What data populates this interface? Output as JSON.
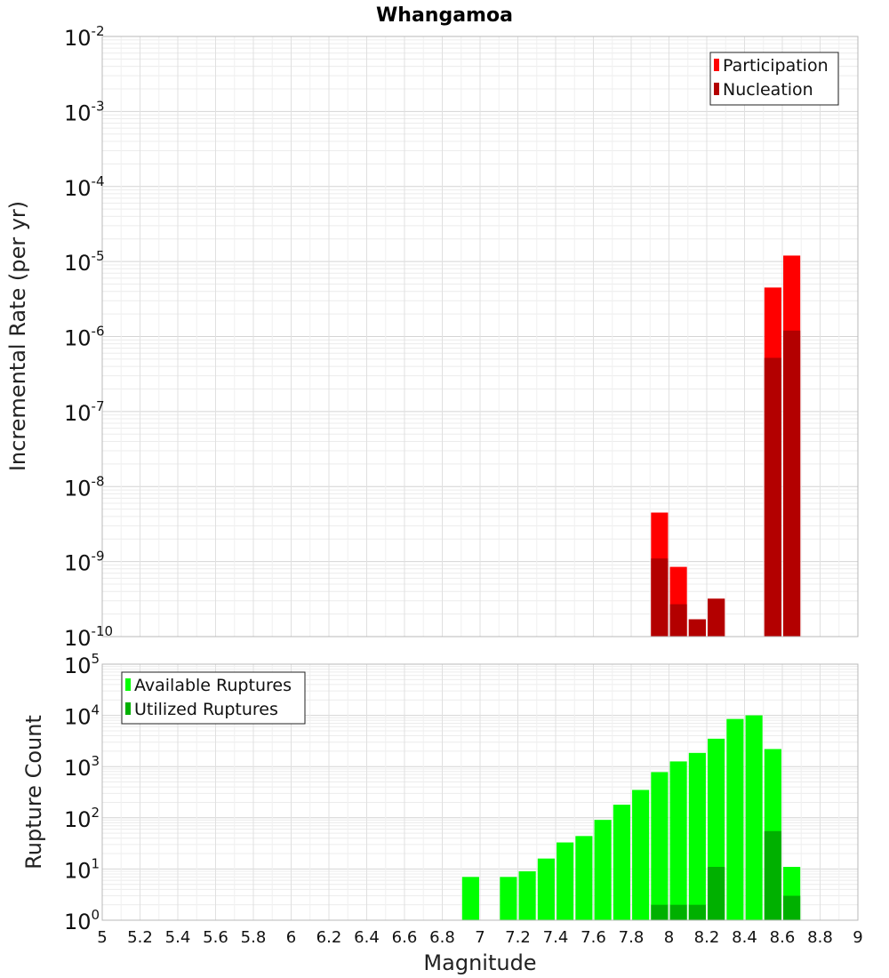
{
  "title": "Whangamoa",
  "xlabel": "Magnitude",
  "chart_data": [
    {
      "type": "bar",
      "ylabel": "Incremental Rate (per yr)",
      "yscale": "log",
      "ylim": [
        1e-10,
        0.01
      ],
      "xlim": [
        5,
        9
      ],
      "legend_position": "top-right",
      "x_ticks": [
        "5",
        "5.2",
        "5.4",
        "5.6",
        "5.8",
        "6",
        "6.2",
        "6.4",
        "6.6",
        "6.8",
        "7",
        "7.2",
        "7.4",
        "7.6",
        "7.8",
        "8",
        "8.2",
        "8.4",
        "8.6",
        "8.8",
        "9"
      ],
      "y_tick_exponents": [
        "-10",
        "-9",
        "-8",
        "-7",
        "-6",
        "-5",
        "-4",
        "-3",
        "-2"
      ],
      "grid": true,
      "series": [
        {
          "name": "Participation",
          "color": "#ff0000",
          "x": [
            7.95,
            8.05,
            8.15,
            8.25,
            8.55,
            8.65
          ],
          "values": [
            4.5e-09,
            8.5e-10,
            1.7e-10,
            3.2e-10,
            4.5e-06,
            1.2e-05
          ]
        },
        {
          "name": "Nucleation",
          "color": "#b30000",
          "x": [
            7.95,
            8.05,
            8.15,
            8.25,
            8.55,
            8.65
          ],
          "values": [
            1.1e-09,
            2.7e-10,
            1.7e-10,
            3.2e-10,
            5.2e-07,
            1.2e-06
          ]
        }
      ]
    },
    {
      "type": "bar",
      "ylabel": "Rupture Count",
      "yscale": "log",
      "ylim": [
        1,
        100000.0
      ],
      "xlim": [
        5,
        9
      ],
      "legend_position": "top-left",
      "x_ticks": [
        "5",
        "5.2",
        "5.4",
        "5.6",
        "5.8",
        "6",
        "6.2",
        "6.4",
        "6.6",
        "6.8",
        "7",
        "7.2",
        "7.4",
        "7.6",
        "7.8",
        "8",
        "8.2",
        "8.4",
        "8.6",
        "8.8",
        "9"
      ],
      "y_tick_exponents": [
        "0",
        "1",
        "2",
        "3",
        "4",
        "5"
      ],
      "grid": true,
      "series": [
        {
          "name": "Available Ruptures",
          "color": "#00ff00",
          "x": [
            6.95,
            7.15,
            7.25,
            7.35,
            7.45,
            7.55,
            7.65,
            7.75,
            7.85,
            7.95,
            8.05,
            8.15,
            8.25,
            8.35,
            8.45,
            8.55,
            8.65
          ],
          "values": [
            7,
            7,
            9,
            16,
            33,
            44,
            91,
            180,
            350,
            780,
            1260,
            1850,
            3500,
            8500,
            10000,
            2200,
            11
          ]
        },
        {
          "name": "Utilized Ruptures",
          "color": "#00b000",
          "x": [
            7.95,
            8.05,
            8.15,
            8.25,
            8.55,
            8.65
          ],
          "values": [
            2,
            2,
            2,
            11,
            55,
            3
          ]
        }
      ]
    }
  ]
}
